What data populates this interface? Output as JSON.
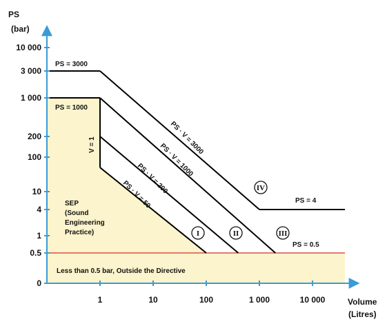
{
  "chart_data": {
    "type": "line",
    "title": "",
    "x_axis": {
      "label": "Volume",
      "label_line2": "(Litres)",
      "scale": "log",
      "ticks": [
        "1",
        "10",
        "100",
        "1 000",
        "10 000"
      ],
      "tick_values": [
        1,
        10,
        100,
        1000,
        10000
      ]
    },
    "y_axis": {
      "label": "PS",
      "label_line2": "(bar)",
      "scale": "piecewise",
      "ticks": [
        "0",
        "0.5",
        "1",
        "4",
        "10",
        "100",
        "200",
        "1 000",
        "3 000",
        "10 000"
      ],
      "tick_values": [
        0,
        0.5,
        1,
        4,
        10,
        100,
        200,
        1000,
        3000,
        10000
      ]
    },
    "zones": [
      {
        "name": "SEP",
        "text_lines": [
          "SEP",
          "(Sound",
          "Engineering",
          "Practice)"
        ],
        "color": "#fbf4cc"
      },
      {
        "name": "below-threshold",
        "text": "Less than 0.5 bar, Outside the Directive",
        "color": "#fbf4cc"
      }
    ],
    "series": [
      {
        "name": "PS = 0.5",
        "points": [
          [
            0.1,
            0.5
          ],
          [
            100000,
            0.5
          ]
        ],
        "color": "#d92b2b"
      },
      {
        "name": "PS = 3000",
        "points": [
          [
            0.1,
            3000
          ],
          [
            1,
            3000
          ]
        ],
        "color": "#000000"
      },
      {
        "name": "PS = 1000",
        "points": [
          [
            0.1,
            1000
          ],
          [
            1,
            1000
          ]
        ],
        "color": "#000000"
      },
      {
        "name": "V = 1",
        "points": [
          [
            1,
            1000
          ],
          [
            1,
            50
          ]
        ],
        "color": "#000000"
      },
      {
        "name": "PS · V = 50",
        "points": [
          [
            1,
            50
          ],
          [
            100,
            0.5
          ]
        ],
        "color": "#000000"
      },
      {
        "name": "PS · V = 200",
        "points": [
          [
            1,
            200
          ],
          [
            400,
            0.5
          ]
        ],
        "color": "#000000"
      },
      {
        "name": "PS · V = 1000",
        "points": [
          [
            1,
            1000
          ],
          [
            2000,
            0.5
          ]
        ],
        "color": "#000000"
      },
      {
        "name": "PS · V = 3000",
        "points": [
          [
            1,
            3000
          ],
          [
            1000,
            4
          ]
        ],
        "color": "#000000"
      },
      {
        "name": "PS = 4",
        "points": [
          [
            1000,
            4
          ],
          [
            100000,
            4
          ]
        ],
        "color": "#000000"
      }
    ],
    "line_labels": {
      "ps3000": "PS = 3000",
      "ps1000": "PS = 1000",
      "v1": "V = 1",
      "pv50": "PS · V = 50",
      "pv200": "PS · V = 200",
      "pv1000": "PS · V = 1000",
      "pv3000": "PS · V = 3000",
      "ps4": "PS = 4",
      "ps05": "PS = 0.5"
    },
    "categories": [
      {
        "label": "I",
        "volume": 100,
        "pressure": 1
      },
      {
        "label": "II",
        "volume": 400,
        "pressure": 1
      },
      {
        "label": "III",
        "volume": 2000,
        "pressure": 1
      },
      {
        "label": "IV",
        "volume": 1000,
        "pressure": 7
      }
    ],
    "colors": {
      "axis": "#3a9bd5",
      "zone_fill": "#fbf4cc",
      "threshold": "#d92b2b",
      "line": "#000000"
    },
    "grid": false,
    "legend": "none"
  }
}
